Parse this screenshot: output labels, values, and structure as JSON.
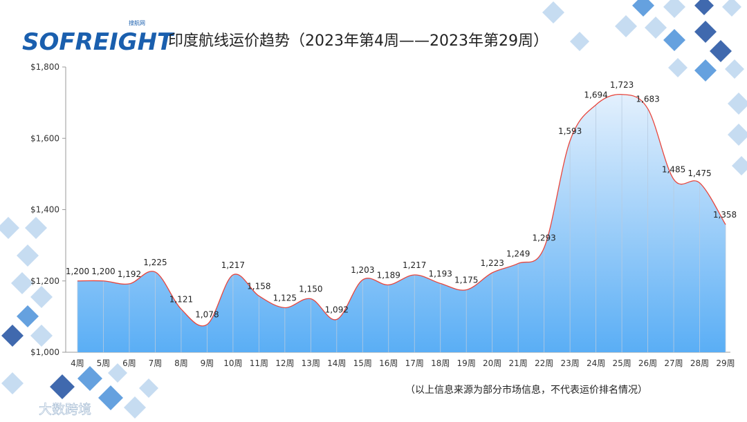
{
  "logo": {
    "text": "SOFREIGHT",
    "sub": "搜航网"
  },
  "title": "印度航线运价趋势（2023年第4周——2023年第29周）",
  "footnote": "（以上信息来源为部分市场信息，不代表运价排名情况）",
  "watermark": "大数跨境",
  "colors": {
    "line": "#e8453c",
    "fill_top": "#e3f0fd",
    "fill_bottom": "#5aaef5",
    "logo": "#1a5fae",
    "tile_dark": "#1f4fa0",
    "tile_mid": "#4a90d9",
    "tile_light": "#bcd6ef"
  },
  "chart_data": {
    "type": "area",
    "categories": [
      "4周",
      "5周",
      "6周",
      "7周",
      "8周",
      "9周",
      "10周",
      "11周",
      "12周",
      "13周",
      "14周",
      "15周",
      "16周",
      "17周",
      "18周",
      "19周",
      "20周",
      "21周",
      "22周",
      "23周",
      "24周",
      "25周",
      "26周",
      "27周",
      "28周",
      "29周"
    ],
    "values": [
      1200,
      1200,
      1192,
      1225,
      1121,
      1078,
      1217,
      1158,
      1125,
      1150,
      1092,
      1203,
      1189,
      1217,
      1193,
      1175,
      1223,
      1249,
      1293,
      1593,
      1694,
      1723,
      1683,
      1485,
      1475,
      1358
    ],
    "data_labels": [
      "1,200",
      "1,200",
      "1,192",
      "1,225",
      "1,121",
      "1,078",
      "1,217",
      "1,158",
      "1,125",
      "1,150",
      "1,092",
      "1,203",
      "1,189",
      "1,217",
      "1,193",
      "1,175",
      "1,223",
      "1,249",
      "1,293",
      "1,593",
      "1,694",
      "1,723",
      "1,683",
      "1,485",
      "1,475",
      "1,358"
    ],
    "yticks": [
      "$1,000",
      "$1,200",
      "$1,400",
      "$1,600",
      "$1,800"
    ],
    "ytick_values": [
      1000,
      1200,
      1400,
      1600,
      1800
    ],
    "ylim": [
      1000,
      1800
    ],
    "grid": false,
    "legend": "none"
  }
}
